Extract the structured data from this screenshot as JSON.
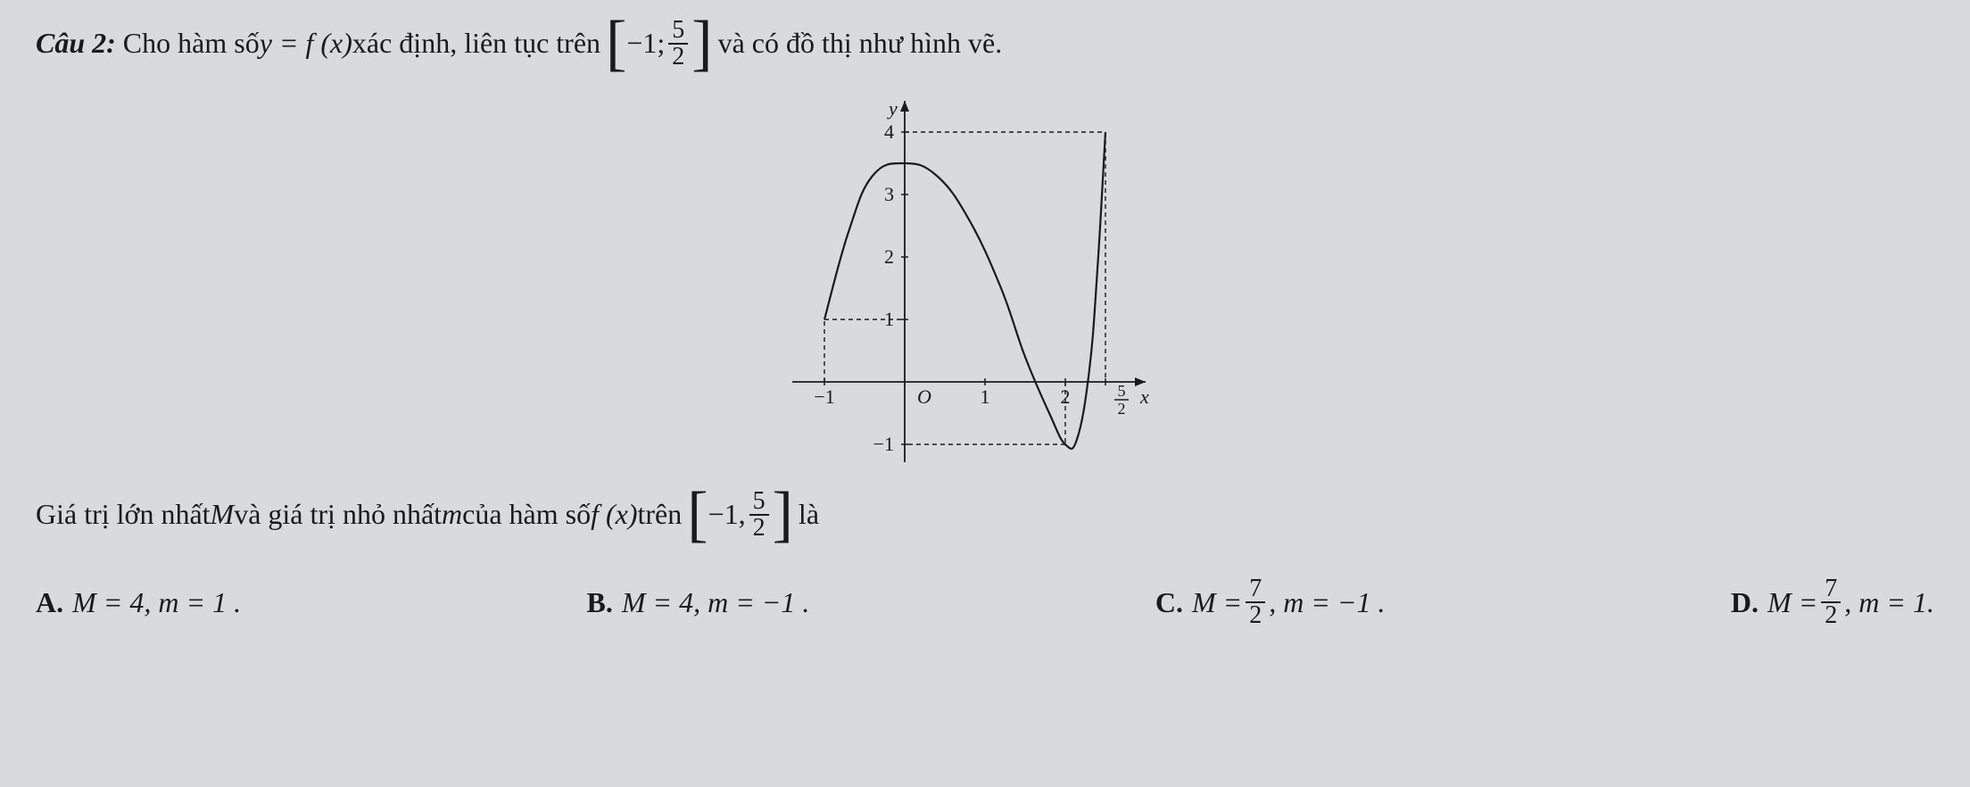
{
  "question": {
    "label": "Câu 2:",
    "text_1": "Cho hàm số ",
    "eq_1": "y = f (x)",
    "text_2": " xác định, liên tục trên ",
    "interval_left": "−1;",
    "interval_frac_num": "5",
    "interval_frac_den": "2",
    "text_3": " và có đồ thị như hình vẽ."
  },
  "graph": {
    "type": "function-curve",
    "x_axis_label": "x",
    "y_axis_label": "y",
    "xlim": [
      -1.4,
      3.0
    ],
    "ylim": [
      -1.4,
      4.5
    ],
    "x_ticks": [
      -1,
      1,
      2
    ],
    "x_tick_labels": [
      "−1",
      "1",
      "2"
    ],
    "y_ticks": [
      -1,
      1,
      2,
      3,
      4
    ],
    "y_tick_labels": [
      "−1",
      "1",
      "2",
      "3",
      "4"
    ],
    "origin_label": "O",
    "special_x_frac": {
      "num": "5",
      "den": "2",
      "value": 2.5
    },
    "curve_points": [
      {
        "x": -1.0,
        "y": 1.0
      },
      {
        "x": -0.7,
        "y": 2.4
      },
      {
        "x": -0.4,
        "y": 3.3
      },
      {
        "x": 0.0,
        "y": 3.5
      },
      {
        "x": 0.4,
        "y": 3.3
      },
      {
        "x": 0.8,
        "y": 2.6
      },
      {
        "x": 1.2,
        "y": 1.5
      },
      {
        "x": 1.5,
        "y": 0.4
      },
      {
        "x": 1.8,
        "y": -0.5
      },
      {
        "x": 2.0,
        "y": -1.0
      },
      {
        "x": 2.15,
        "y": -0.9
      },
      {
        "x": 2.3,
        "y": 0.2
      },
      {
        "x": 2.4,
        "y": 1.8
      },
      {
        "x": 2.5,
        "y": 4.0
      }
    ],
    "dashed_lines": [
      {
        "from": {
          "x": -1.0,
          "y": 0
        },
        "to": {
          "x": -1.0,
          "y": 1.0
        }
      },
      {
        "from": {
          "x": -1.0,
          "y": 1.0
        },
        "to": {
          "x": 0,
          "y": 1.0
        }
      },
      {
        "from": {
          "x": 0,
          "y": 4.0
        },
        "to": {
          "x": 2.5,
          "y": 4.0
        }
      },
      {
        "from": {
          "x": 2.5,
          "y": 4.0
        },
        "to": {
          "x": 2.5,
          "y": 0
        }
      },
      {
        "from": {
          "x": 2.0,
          "y": 0
        },
        "to": {
          "x": 2.0,
          "y": -1.0
        }
      },
      {
        "from": {
          "x": 2.0,
          "y": -1.0
        },
        "to": {
          "x": 0,
          "y": -1.0
        }
      }
    ],
    "stroke_color": "#1a1a1a",
    "axis_color": "#1a1a1a",
    "dash_pattern": "5,4",
    "line_width": 2.2,
    "font_size": 22,
    "background_color": "#d8dadc"
  },
  "subtext": {
    "text_1": "Giá trị lớn nhất ",
    "M": "M",
    "text_2": " và giá trị nhỏ nhất ",
    "m": "m",
    "text_3": " của hàm số ",
    "fx": "f (x)",
    "text_4": " trên ",
    "interval_left": "−1,",
    "interval_frac_num": "5",
    "interval_frac_den": "2",
    "text_5": " là"
  },
  "options": {
    "A": {
      "label": "A.",
      "text": "M = 4, m = 1 ."
    },
    "B": {
      "label": "B.",
      "text": "M = 4, m = −1 ."
    },
    "C": {
      "label": "C.",
      "prefix": "M =",
      "frac_num": "7",
      "frac_den": "2",
      "suffix": ", m = −1 ."
    },
    "D": {
      "label": "D.",
      "prefix": "M =",
      "frac_num": "7",
      "frac_den": "2",
      "suffix": ", m = 1."
    }
  }
}
